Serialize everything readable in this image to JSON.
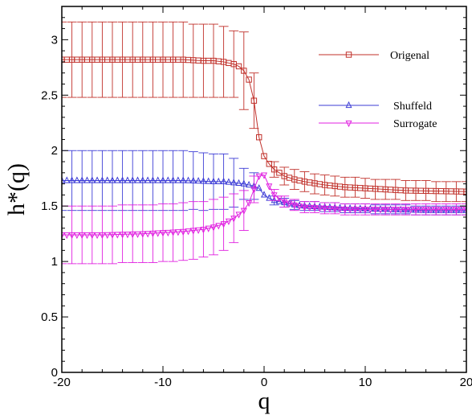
{
  "chart_data": {
    "type": "line",
    "xlabel": "q",
    "ylabel": "h*(q)",
    "xlim": [
      -20,
      20
    ],
    "ylim": [
      0,
      3.3
    ],
    "x_ticks": [
      -20,
      -10,
      0,
      10,
      20
    ],
    "y_ticks": [
      0,
      0.5,
      1,
      1.5,
      2,
      2.5,
      3
    ],
    "x_tick_labels": [
      "-20",
      "-10",
      "0",
      "10",
      "20"
    ],
    "y_tick_labels": [
      "0",
      "0.5",
      "1",
      "1.5",
      "2",
      "2.5",
      "3"
    ],
    "grid": false,
    "legend_position": "top-right",
    "series": [
      {
        "name": "Origenal",
        "color": "#c0302a",
        "marker": "square",
        "points": [
          [
            -20,
            2.82
          ],
          [
            -16,
            2.82
          ],
          [
            -12,
            2.82
          ],
          [
            -8,
            2.82
          ],
          [
            -6,
            2.81
          ],
          [
            -5,
            2.81
          ],
          [
            -4,
            2.8
          ],
          [
            -3.5,
            2.79
          ],
          [
            -3,
            2.78
          ],
          [
            -2.5,
            2.76
          ],
          [
            -2,
            2.72
          ],
          [
            -1.5,
            2.64
          ],
          [
            -1,
            2.45
          ],
          [
            -0.5,
            2.12
          ],
          [
            0,
            1.95
          ],
          [
            0.5,
            1.88
          ],
          [
            1,
            1.83
          ],
          [
            2,
            1.77
          ],
          [
            3,
            1.74
          ],
          [
            4,
            1.72
          ],
          [
            6,
            1.69
          ],
          [
            8,
            1.67
          ],
          [
            10,
            1.66
          ],
          [
            14,
            1.64
          ],
          [
            20,
            1.63
          ]
        ],
        "error_bars": [
          {
            "x": -20,
            "y": 2.82,
            "err": 0.34
          },
          {
            "x": -19,
            "y": 2.82,
            "err": 0.34
          },
          {
            "x": -18,
            "y": 2.82,
            "err": 0.34
          },
          {
            "x": -17,
            "y": 2.82,
            "err": 0.34
          },
          {
            "x": -16,
            "y": 2.82,
            "err": 0.34
          },
          {
            "x": -15,
            "y": 2.82,
            "err": 0.34
          },
          {
            "x": -14,
            "y": 2.82,
            "err": 0.34
          },
          {
            "x": -13,
            "y": 2.82,
            "err": 0.34
          },
          {
            "x": -12,
            "y": 2.82,
            "err": 0.34
          },
          {
            "x": -11,
            "y": 2.82,
            "err": 0.34
          },
          {
            "x": -10,
            "y": 2.82,
            "err": 0.34
          },
          {
            "x": -9,
            "y": 2.82,
            "err": 0.34
          },
          {
            "x": -8,
            "y": 2.82,
            "err": 0.34
          },
          {
            "x": -7,
            "y": 2.81,
            "err": 0.33
          },
          {
            "x": -6,
            "y": 2.81,
            "err": 0.33
          },
          {
            "x": -5,
            "y": 2.81,
            "err": 0.33
          },
          {
            "x": -4,
            "y": 2.8,
            "err": 0.32
          },
          {
            "x": -3,
            "y": 2.78,
            "err": 0.3
          },
          {
            "x": -2,
            "y": 2.72,
            "err": 0.35
          },
          {
            "x": -1,
            "y": 2.45,
            "err": 0.25
          },
          {
            "x": 1,
            "y": 1.83,
            "err": 0.07
          },
          {
            "x": 2,
            "y": 1.77,
            "err": 0.08
          },
          {
            "x": 3,
            "y": 1.74,
            "err": 0.09
          },
          {
            "x": 4,
            "y": 1.72,
            "err": 0.09
          },
          {
            "x": 5,
            "y": 1.7,
            "err": 0.09
          },
          {
            "x": 6,
            "y": 1.69,
            "err": 0.09
          },
          {
            "x": 7,
            "y": 1.68,
            "err": 0.09
          },
          {
            "x": 8,
            "y": 1.67,
            "err": 0.09
          },
          {
            "x": 9,
            "y": 1.67,
            "err": 0.09
          },
          {
            "x": 10,
            "y": 1.66,
            "err": 0.09
          },
          {
            "x": 11,
            "y": 1.65,
            "err": 0.09
          },
          {
            "x": 12,
            "y": 1.65,
            "err": 0.09
          },
          {
            "x": 13,
            "y": 1.65,
            "err": 0.09
          },
          {
            "x": 14,
            "y": 1.64,
            "err": 0.09
          },
          {
            "x": 15,
            "y": 1.64,
            "err": 0.09
          },
          {
            "x": 16,
            "y": 1.64,
            "err": 0.09
          },
          {
            "x": 17,
            "y": 1.63,
            "err": 0.09
          },
          {
            "x": 18,
            "y": 1.63,
            "err": 0.09
          },
          {
            "x": 19,
            "y": 1.63,
            "err": 0.09
          },
          {
            "x": 20,
            "y": 1.63,
            "err": 0.09
          }
        ]
      },
      {
        "name": "Shuffeld",
        "color": "#3d3dd6",
        "marker": "triangle-up",
        "points": [
          [
            -20,
            1.73
          ],
          [
            -16,
            1.73
          ],
          [
            -12,
            1.73
          ],
          [
            -8,
            1.73
          ],
          [
            -5,
            1.72
          ],
          [
            -4,
            1.72
          ],
          [
            -3,
            1.71
          ],
          [
            -2,
            1.7
          ],
          [
            -1.5,
            1.69
          ],
          [
            -1,
            1.68
          ],
          [
            -0.5,
            1.66
          ],
          [
            0,
            1.6
          ],
          [
            0.5,
            1.57
          ],
          [
            1,
            1.55
          ],
          [
            2,
            1.53
          ],
          [
            3,
            1.51
          ],
          [
            4,
            1.5
          ],
          [
            6,
            1.49
          ],
          [
            8,
            1.48
          ],
          [
            12,
            1.47
          ],
          [
            16,
            1.46
          ],
          [
            20,
            1.46
          ]
        ],
        "error_bars": [
          {
            "x": -20,
            "y": 1.73,
            "err": 0.27
          },
          {
            "x": -19,
            "y": 1.73,
            "err": 0.27
          },
          {
            "x": -18,
            "y": 1.73,
            "err": 0.27
          },
          {
            "x": -17,
            "y": 1.73,
            "err": 0.27
          },
          {
            "x": -16,
            "y": 1.73,
            "err": 0.27
          },
          {
            "x": -15,
            "y": 1.73,
            "err": 0.27
          },
          {
            "x": -14,
            "y": 1.73,
            "err": 0.27
          },
          {
            "x": -13,
            "y": 1.73,
            "err": 0.27
          },
          {
            "x": -12,
            "y": 1.73,
            "err": 0.27
          },
          {
            "x": -11,
            "y": 1.73,
            "err": 0.27
          },
          {
            "x": -10,
            "y": 1.73,
            "err": 0.27
          },
          {
            "x": -9,
            "y": 1.73,
            "err": 0.27
          },
          {
            "x": -8,
            "y": 1.73,
            "err": 0.27
          },
          {
            "x": -7,
            "y": 1.73,
            "err": 0.26
          },
          {
            "x": -6,
            "y": 1.72,
            "err": 0.26
          },
          {
            "x": -5,
            "y": 1.72,
            "err": 0.25
          },
          {
            "x": -4,
            "y": 1.72,
            "err": 0.25
          },
          {
            "x": -3,
            "y": 1.71,
            "err": 0.22
          },
          {
            "x": -2,
            "y": 1.7,
            "err": 0.14
          },
          {
            "x": -1,
            "y": 1.68,
            "err": 0.12
          },
          {
            "x": 1,
            "y": 1.55,
            "err": 0.04
          },
          {
            "x": 2,
            "y": 1.53,
            "err": 0.04
          },
          {
            "x": 3,
            "y": 1.51,
            "err": 0.04
          },
          {
            "x": 4,
            "y": 1.5,
            "err": 0.04
          },
          {
            "x": 5,
            "y": 1.5,
            "err": 0.04
          },
          {
            "x": 6,
            "y": 1.49,
            "err": 0.04
          },
          {
            "x": 7,
            "y": 1.49,
            "err": 0.04
          },
          {
            "x": 8,
            "y": 1.48,
            "err": 0.04
          },
          {
            "x": 9,
            "y": 1.48,
            "err": 0.04
          },
          {
            "x": 10,
            "y": 1.48,
            "err": 0.04
          },
          {
            "x": 11,
            "y": 1.47,
            "err": 0.04
          },
          {
            "x": 12,
            "y": 1.47,
            "err": 0.04
          },
          {
            "x": 13,
            "y": 1.47,
            "err": 0.04
          },
          {
            "x": 14,
            "y": 1.47,
            "err": 0.04
          },
          {
            "x": 15,
            "y": 1.46,
            "err": 0.04
          },
          {
            "x": 16,
            "y": 1.46,
            "err": 0.04
          },
          {
            "x": 17,
            "y": 1.46,
            "err": 0.04
          },
          {
            "x": 18,
            "y": 1.46,
            "err": 0.04
          },
          {
            "x": 19,
            "y": 1.46,
            "err": 0.04
          },
          {
            "x": 20,
            "y": 1.46,
            "err": 0.04
          }
        ]
      },
      {
        "name": "Surrogate",
        "color": "#e020e0",
        "marker": "triangle-down",
        "points": [
          [
            -20,
            1.24
          ],
          [
            -16,
            1.24
          ],
          [
            -12,
            1.25
          ],
          [
            -10,
            1.26
          ],
          [
            -8,
            1.27
          ],
          [
            -6,
            1.29
          ],
          [
            -5,
            1.31
          ],
          [
            -4,
            1.34
          ],
          [
            -3,
            1.39
          ],
          [
            -2,
            1.46
          ],
          [
            -1.5,
            1.53
          ],
          [
            -1,
            1.65
          ],
          [
            -0.5,
            1.77
          ],
          [
            0,
            1.78
          ],
          [
            0.5,
            1.68
          ],
          [
            1,
            1.6
          ],
          [
            2,
            1.54
          ],
          [
            3,
            1.51
          ],
          [
            4,
            1.49
          ],
          [
            6,
            1.48
          ],
          [
            8,
            1.47
          ],
          [
            12,
            1.47
          ],
          [
            16,
            1.47
          ],
          [
            20,
            1.47
          ]
        ],
        "error_bars": [
          {
            "x": -20,
            "y": 1.24,
            "err": 0.26
          },
          {
            "x": -19,
            "y": 1.24,
            "err": 0.26
          },
          {
            "x": -18,
            "y": 1.24,
            "err": 0.26
          },
          {
            "x": -17,
            "y": 1.24,
            "err": 0.26
          },
          {
            "x": -16,
            "y": 1.24,
            "err": 0.26
          },
          {
            "x": -15,
            "y": 1.24,
            "err": 0.26
          },
          {
            "x": -14,
            "y": 1.25,
            "err": 0.26
          },
          {
            "x": -13,
            "y": 1.25,
            "err": 0.26
          },
          {
            "x": -12,
            "y": 1.25,
            "err": 0.26
          },
          {
            "x": -11,
            "y": 1.25,
            "err": 0.26
          },
          {
            "x": -10,
            "y": 1.26,
            "err": 0.26
          },
          {
            "x": -9,
            "y": 1.26,
            "err": 0.26
          },
          {
            "x": -8,
            "y": 1.27,
            "err": 0.26
          },
          {
            "x": -7,
            "y": 1.28,
            "err": 0.26
          },
          {
            "x": -6,
            "y": 1.29,
            "err": 0.25
          },
          {
            "x": -5,
            "y": 1.31,
            "err": 0.25
          },
          {
            "x": -4,
            "y": 1.34,
            "err": 0.24
          },
          {
            "x": -3,
            "y": 1.39,
            "err": 0.22
          },
          {
            "x": -2,
            "y": 1.46,
            "err": 0.18
          },
          {
            "x": -1,
            "y": 1.65,
            "err": 0.12
          },
          {
            "x": 1,
            "y": 1.6,
            "err": 0.05
          },
          {
            "x": 2,
            "y": 1.54,
            "err": 0.05
          },
          {
            "x": 3,
            "y": 1.51,
            "err": 0.05
          },
          {
            "x": 4,
            "y": 1.49,
            "err": 0.05
          },
          {
            "x": 5,
            "y": 1.49,
            "err": 0.05
          },
          {
            "x": 6,
            "y": 1.48,
            "err": 0.05
          },
          {
            "x": 7,
            "y": 1.48,
            "err": 0.05
          },
          {
            "x": 8,
            "y": 1.47,
            "err": 0.05
          },
          {
            "x": 9,
            "y": 1.47,
            "err": 0.05
          },
          {
            "x": 10,
            "y": 1.47,
            "err": 0.05
          },
          {
            "x": 11,
            "y": 1.47,
            "err": 0.05
          },
          {
            "x": 12,
            "y": 1.47,
            "err": 0.05
          },
          {
            "x": 13,
            "y": 1.47,
            "err": 0.05
          },
          {
            "x": 14,
            "y": 1.47,
            "err": 0.05
          },
          {
            "x": 15,
            "y": 1.47,
            "err": 0.05
          },
          {
            "x": 16,
            "y": 1.47,
            "err": 0.05
          },
          {
            "x": 17,
            "y": 1.47,
            "err": 0.05
          },
          {
            "x": 18,
            "y": 1.47,
            "err": 0.05
          },
          {
            "x": 19,
            "y": 1.47,
            "err": 0.05
          },
          {
            "x": 20,
            "y": 1.47,
            "err": 0.05
          }
        ]
      }
    ]
  }
}
